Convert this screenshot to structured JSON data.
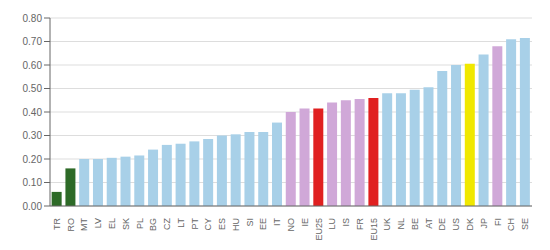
{
  "chart_data": {
    "type": "bar",
    "categories": [
      "TR",
      "RO",
      "MT",
      "LV",
      "EL",
      "SK",
      "PL",
      "BG",
      "CZ",
      "LT",
      "PT",
      "CY",
      "ES",
      "HU",
      "SI",
      "EE",
      "IT",
      "NO",
      "IE",
      "EU25",
      "LU",
      "IS",
      "FR",
      "EU15",
      "UK",
      "NL",
      "BE",
      "AT",
      "DE",
      "US",
      "DK",
      "JP",
      "FI",
      "CH",
      "SE"
    ],
    "values": [
      0.06,
      0.16,
      0.2,
      0.2,
      0.205,
      0.21,
      0.215,
      0.24,
      0.26,
      0.265,
      0.275,
      0.285,
      0.3,
      0.305,
      0.315,
      0.315,
      0.355,
      0.4,
      0.415,
      0.415,
      0.44,
      0.45,
      0.455,
      0.46,
      0.48,
      0.48,
      0.495,
      0.505,
      0.575,
      0.6,
      0.605,
      0.645,
      0.68,
      0.71,
      0.715
    ],
    "colors": [
      "#2d6a27",
      "#2d6a27",
      "#a8d0e8",
      "#a8d0e8",
      "#a8d0e8",
      "#a8d0e8",
      "#a8d0e8",
      "#a8d0e8",
      "#a8d0e8",
      "#a8d0e8",
      "#a8d0e8",
      "#a8d0e8",
      "#a8d0e8",
      "#a8d0e8",
      "#a8d0e8",
      "#a8d0e8",
      "#a8d0e8",
      "#d0a8d8",
      "#d0a8d8",
      "#e02020",
      "#d0a8d8",
      "#d0a8d8",
      "#d0a8d8",
      "#e02020",
      "#a8d0e8",
      "#a8d0e8",
      "#a8d0e8",
      "#a8d0e8",
      "#a8d0e8",
      "#a8d0e8",
      "#f0e800",
      "#a8d0e8",
      "#d0a8d8",
      "#a8d0e8",
      "#a8d0e8"
    ],
    "ylim": [
      0,
      0.8
    ],
    "yticks": [
      {
        "value": 0.0,
        "label": "0.00"
      },
      {
        "value": 0.1,
        "label": "0.10"
      },
      {
        "value": 0.2,
        "label": "0.20"
      },
      {
        "value": 0.3,
        "label": "0.30"
      },
      {
        "value": 0.4,
        "label": "0.40"
      },
      {
        "value": 0.5,
        "label": "0.50"
      },
      {
        "value": 0.6,
        "label": "0.60"
      },
      {
        "value": 0.7,
        "label": "0.70"
      },
      {
        "value": 0.8,
        "label": "0.80"
      }
    ],
    "grid": true
  }
}
